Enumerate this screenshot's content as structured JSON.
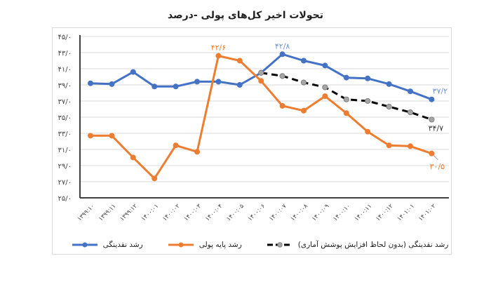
{
  "chart_data": {
    "type": "line",
    "title": "تحولات اخیر کل‌های پولی -درصد",
    "xlabel": "",
    "ylabel": "",
    "ylim": [
      25.0,
      45.0
    ],
    "yticks": [
      "۲۵/۰",
      "۲۷/۰",
      "۲۹/۰",
      "۳۱/۰",
      "۳۳/۰",
      "۳۵/۰",
      "۳۷/۰",
      "۳۹/۰",
      "۴۱/۰",
      "۴۳/۰",
      "۴۵/۰"
    ],
    "ytick_values": [
      25,
      27,
      29,
      31,
      33,
      35,
      37,
      39,
      41,
      43,
      45
    ],
    "grid": true,
    "legend_position": "bottom",
    "categories": [
      "۱۳۹۹:۱۰",
      "۱۳۹۹:۱۱",
      "۱۳۹۹:۱۲",
      "۱۴۰۰:۰۱",
      "۱۴۰۰:۰۲",
      "۱۴۰۰:۰۳",
      "۱۴۰۰:۰۴",
      "۱۴۰۰:۰۵",
      "۱۴۰۰:۰۶",
      "۱۴۰۰:۰۷",
      "۱۴۰۰:۰۸",
      "۱۴۰۰:۰۹",
      "۱۴۰۰:۱۰",
      "۱۴۰۰:۱۱",
      "۱۴۰۰:۱۲",
      "۱۴۰۱:۰۱",
      "۱۴۰۱:۰۲"
    ],
    "series": [
      {
        "name": "رشد نقدینگی",
        "color": "#4472C4",
        "style": "solid",
        "values": [
          39.2,
          39.1,
          40.6,
          38.8,
          38.8,
          39.4,
          39.4,
          39.0,
          40.5,
          42.8,
          42.0,
          41.4,
          39.9,
          39.8,
          39.1,
          38.2,
          37.2
        ],
        "last_label": "۳۷/۲",
        "peak_label": {
          "index": 9,
          "text": "۴۲/۸"
        }
      },
      {
        "name": "رشد پایه پولی",
        "color": "#ED7D31",
        "style": "solid",
        "values": [
          32.7,
          32.7,
          30.0,
          27.4,
          31.5,
          30.7,
          42.6,
          42.0,
          39.5,
          36.4,
          35.8,
          37.6,
          35.5,
          33.2,
          31.5,
          31.4,
          30.5
        ],
        "last_label": "۳۰/۵",
        "peak_label": {
          "index": 6,
          "text": "۴۲/۶"
        }
      },
      {
        "name": "رشد نقدینگی (بدون لحاظ افزایش پوشش آماری)",
        "color": "#000000",
        "style": "dashed",
        "values": [
          null,
          null,
          null,
          null,
          null,
          null,
          null,
          null,
          40.5,
          40.1,
          39.3,
          38.7,
          37.2,
          37.0,
          36.3,
          35.6,
          34.7
        ],
        "last_label": "۳۴/۷"
      }
    ]
  },
  "legend": {
    "items": [
      {
        "label": "رشد نقدینگی (بدون لحاظ افزایش پوشش آماری)",
        "color": "#000000",
        "style": "dashed"
      },
      {
        "label": "رشد پایه پولی",
        "color": "#ED7D31",
        "style": "solid"
      },
      {
        "label": "رشد نقدینگی",
        "color": "#4472C4",
        "style": "solid"
      }
    ]
  }
}
